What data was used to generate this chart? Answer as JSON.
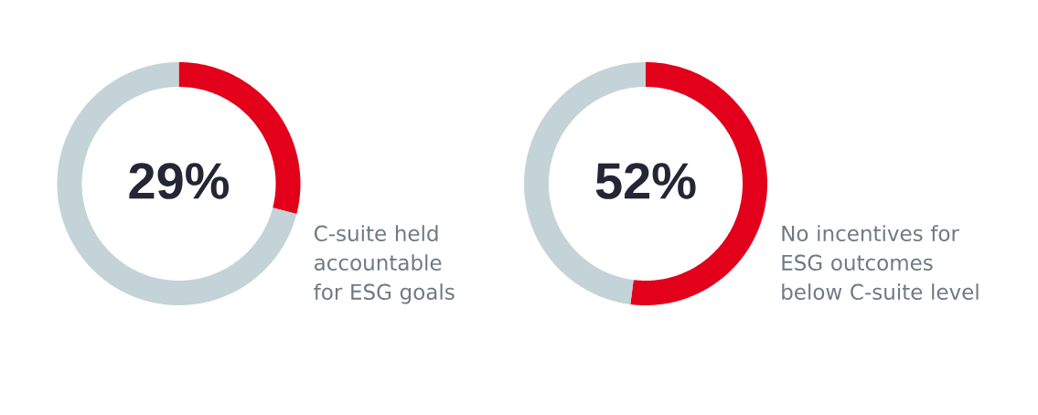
{
  "chart_data": [
    {
      "type": "donut",
      "categories": [
        null,
        null
      ],
      "values": [
        29,
        71
      ],
      "colors": [
        "#e2001a",
        "#c3d3d8"
      ],
      "value_labels": [
        "29%",
        null
      ],
      "annotations": [
        "C-suite held accountable for ESG goals"
      ]
    },
    {
      "type": "donut",
      "categories": [
        null,
        null
      ],
      "values": [
        52,
        48
      ],
      "colors": [
        "#e2001a",
        "#c3d3d8"
      ],
      "value_labels": [
        "52%",
        null
      ],
      "annotations": [
        "No incentives for ESG outcomes below C-suite level"
      ]
    }
  ]
}
